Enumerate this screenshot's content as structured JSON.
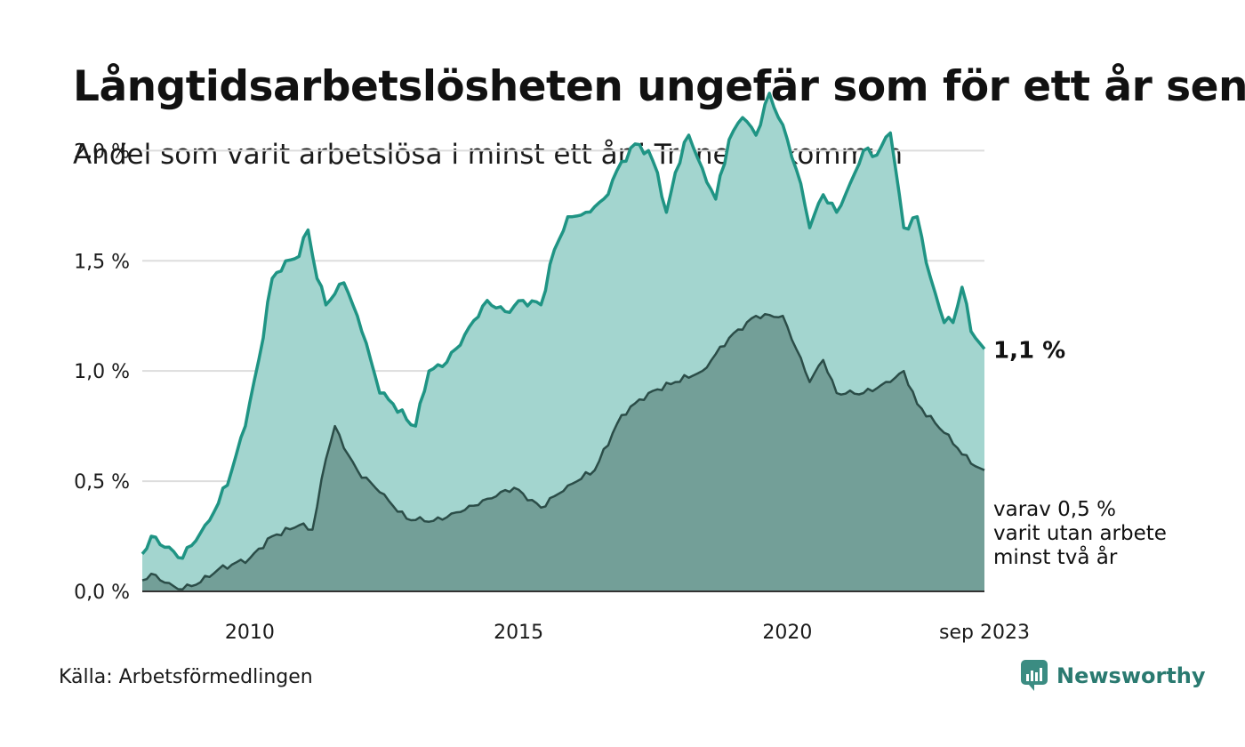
{
  "header": {
    "title": "Långtidsarbetslösheten ungefär som för ett år sen",
    "subtitle": "Andel som varit arbetslösa i minst ett år i Tranemo kommun"
  },
  "footer": {
    "source": "Källa: Arbetsförmedlingen",
    "brand": "Newsworthy"
  },
  "colors": {
    "main_line": "#1f9484",
    "main_fill": "#a3d5cf",
    "sub_line": "#2b4d48",
    "sub_fill": "#739f98",
    "grid": "#dddddd",
    "axis": "#333333"
  },
  "chart_data": {
    "type": "area",
    "title": "Andel som varit arbetslösa i minst ett år i Tranemo kommun",
    "x_start": "2008-01",
    "x_end": "2023-09",
    "x_tick_labels": [
      "2010",
      "2015",
      "2020",
      "sep 2023"
    ],
    "y_tick_labels": [
      "0,0 %",
      "0,5 %",
      "1,0 %",
      "1,5 %",
      "2,0 %"
    ],
    "ylim": [
      0,
      2.3
    ],
    "grid": true,
    "series": [
      {
        "name": "Minst ett år",
        "label": "1,1 %",
        "anchors": [
          [
            "2008-01",
            0.17
          ],
          [
            "2008-03",
            0.25
          ],
          [
            "2008-06",
            0.2
          ],
          [
            "2008-10",
            0.15
          ],
          [
            "2009-03",
            0.3
          ],
          [
            "2009-06",
            0.4
          ],
          [
            "2009-09",
            0.55
          ],
          [
            "2009-12",
            0.75
          ],
          [
            "2010-03",
            1.05
          ],
          [
            "2010-06",
            1.42
          ],
          [
            "2010-09",
            1.5
          ],
          [
            "2010-12",
            1.52
          ],
          [
            "2011-02",
            1.64
          ],
          [
            "2011-04",
            1.42
          ],
          [
            "2011-06",
            1.3
          ],
          [
            "2011-08",
            1.35
          ],
          [
            "2011-10",
            1.4
          ],
          [
            "2011-12",
            1.3
          ],
          [
            "2012-02",
            1.18
          ],
          [
            "2012-04",
            1.05
          ],
          [
            "2012-06",
            0.9
          ],
          [
            "2012-09",
            0.85
          ],
          [
            "2012-12",
            0.78
          ],
          [
            "2013-02",
            0.75
          ],
          [
            "2013-05",
            1.0
          ],
          [
            "2013-08",
            1.02
          ],
          [
            "2013-11",
            1.1
          ],
          [
            "2014-02",
            1.2
          ],
          [
            "2014-06",
            1.32
          ],
          [
            "2014-10",
            1.27
          ],
          [
            "2015-02",
            1.32
          ],
          [
            "2015-06",
            1.3
          ],
          [
            "2015-09",
            1.55
          ],
          [
            "2015-12",
            1.7
          ],
          [
            "2016-04",
            1.72
          ],
          [
            "2016-08",
            1.78
          ],
          [
            "2016-12",
            1.95
          ],
          [
            "2017-03",
            2.03
          ],
          [
            "2017-06",
            2.0
          ],
          [
            "2017-08",
            1.9
          ],
          [
            "2017-10",
            1.72
          ],
          [
            "2017-12",
            1.9
          ],
          [
            "2018-03",
            2.07
          ],
          [
            "2018-06",
            1.92
          ],
          [
            "2018-09",
            1.78
          ],
          [
            "2018-12",
            2.05
          ],
          [
            "2019-03",
            2.15
          ],
          [
            "2019-06",
            2.07
          ],
          [
            "2019-09",
            2.26
          ],
          [
            "2019-11",
            2.15
          ],
          [
            "2020-01",
            2.05
          ],
          [
            "2020-04",
            1.85
          ],
          [
            "2020-06",
            1.65
          ],
          [
            "2020-09",
            1.8
          ],
          [
            "2020-12",
            1.72
          ],
          [
            "2021-03",
            1.85
          ],
          [
            "2021-06",
            2.0
          ],
          [
            "2021-09",
            1.98
          ],
          [
            "2021-12",
            2.08
          ],
          [
            "2022-03",
            1.65
          ],
          [
            "2022-06",
            1.7
          ],
          [
            "2022-09",
            1.42
          ],
          [
            "2022-12",
            1.22
          ],
          [
            "2023-02",
            1.22
          ],
          [
            "2023-04",
            1.38
          ],
          [
            "2023-06",
            1.18
          ],
          [
            "2023-09",
            1.1
          ]
        ]
      },
      {
        "name": "Minst två år",
        "label": [
          "varav 0,5 %",
          "varit utan arbete",
          "minst två år"
        ],
        "anchors": [
          [
            "2008-01",
            0.05
          ],
          [
            "2008-03",
            0.08
          ],
          [
            "2008-06",
            0.04
          ],
          [
            "2008-09",
            0.01
          ],
          [
            "2009-01",
            0.03
          ],
          [
            "2009-06",
            0.1
          ],
          [
            "2010-01",
            0.15
          ],
          [
            "2010-06",
            0.25
          ],
          [
            "2010-12",
            0.3
          ],
          [
            "2011-03",
            0.28
          ],
          [
            "2011-06",
            0.6
          ],
          [
            "2011-08",
            0.75
          ],
          [
            "2011-10",
            0.65
          ],
          [
            "2012-01",
            0.55
          ],
          [
            "2012-06",
            0.45
          ],
          [
            "2012-12",
            0.33
          ],
          [
            "2013-06",
            0.32
          ],
          [
            "2013-12",
            0.36
          ],
          [
            "2014-06",
            0.42
          ],
          [
            "2014-12",
            0.47
          ],
          [
            "2015-06",
            0.38
          ],
          [
            "2015-12",
            0.48
          ],
          [
            "2016-06",
            0.55
          ],
          [
            "2016-12",
            0.8
          ],
          [
            "2017-06",
            0.9
          ],
          [
            "2017-12",
            0.95
          ],
          [
            "2018-06",
            1.0
          ],
          [
            "2018-12",
            1.15
          ],
          [
            "2019-06",
            1.25
          ],
          [
            "2019-12",
            1.25
          ],
          [
            "2020-03",
            1.1
          ],
          [
            "2020-06",
            0.95
          ],
          [
            "2020-09",
            1.05
          ],
          [
            "2020-12",
            0.9
          ],
          [
            "2021-06",
            0.9
          ],
          [
            "2021-12",
            0.95
          ],
          [
            "2022-03",
            1.0
          ],
          [
            "2022-06",
            0.85
          ],
          [
            "2022-12",
            0.72
          ],
          [
            "2023-03",
            0.65
          ],
          [
            "2023-06",
            0.58
          ],
          [
            "2023-09",
            0.55
          ]
        ]
      }
    ]
  }
}
